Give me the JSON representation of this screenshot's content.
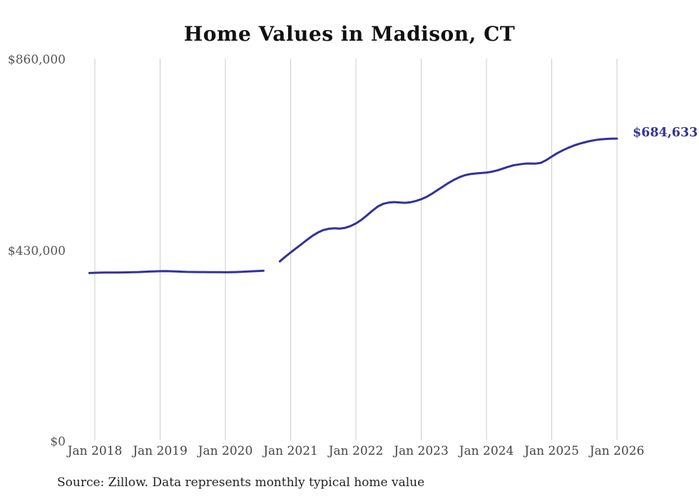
{
  "chart_data": {
    "type": "line",
    "title": "Home Values in Madison, CT",
    "source": "Source: Zillow. Data represents monthly typical home value",
    "xlabel": "",
    "ylabel": "",
    "ylim": [
      0,
      860000
    ],
    "grid": "vertical-only",
    "legend": "none",
    "x_tick_labels": [
      "Jan 2018",
      "Jan 2019",
      "Jan 2020",
      "Jan 2021",
      "Jan 2022",
      "Jan 2023",
      "Jan 2024",
      "Jan 2025",
      "Jan 2026"
    ],
    "y_ticks": [
      {
        "label": "$860,000",
        "value": 860000
      },
      {
        "label": "$430,000",
        "value": 430000
      },
      {
        "label": "$0",
        "value": 0
      }
    ],
    "end_label": {
      "text": "$684,633",
      "value": 684633
    },
    "colors": {
      "line": "#32329c",
      "end_label": "#333399",
      "grid": "#cccccc",
      "title": "#111111",
      "axis_text": "#555555"
    },
    "series": [
      {
        "name": "Monthly typical home value",
        "segments": [
          {
            "start_month": "2017-12",
            "values": [
              382000,
              382400,
              382700,
              382900,
              383000,
              383100,
              383200,
              383400,
              383700,
              384100,
              384600,
              385100,
              385600,
              386000,
              386100,
              385800,
              385300,
              384800,
              384400,
              384200,
              384100,
              384000,
              383900,
              383800,
              383700,
              383600,
              383700,
              384000,
              384500,
              385100,
              385800,
              386500,
              387100
            ]
          },
          {
            "start_month": "2020-11",
            "values": [
              408000,
              418500,
              428000,
              437500,
              447000,
              456500,
              465500,
              473000,
              478500,
              481500,
              482500,
              482000,
              483500,
              487500,
              493500,
              501500,
              511500,
              522000,
              531500,
              537500,
              540500,
              541500,
              540800,
              540000,
              541000,
              544000,
              548000,
              553500,
              560500,
              568500,
              576500,
              584500,
              591500,
              597500,
              602000,
              604500,
              606000,
              607000,
              608000,
              610000,
              613000,
              617000,
              621000,
              624500,
              626500,
              628000,
              628500,
              628200,
              630000,
              636000,
              644000,
              651500,
              658000,
              663500,
              668500,
              672500,
              676000,
              679000,
              681200,
              682800,
              683800,
              684300,
              684633
            ]
          }
        ]
      }
    ]
  }
}
